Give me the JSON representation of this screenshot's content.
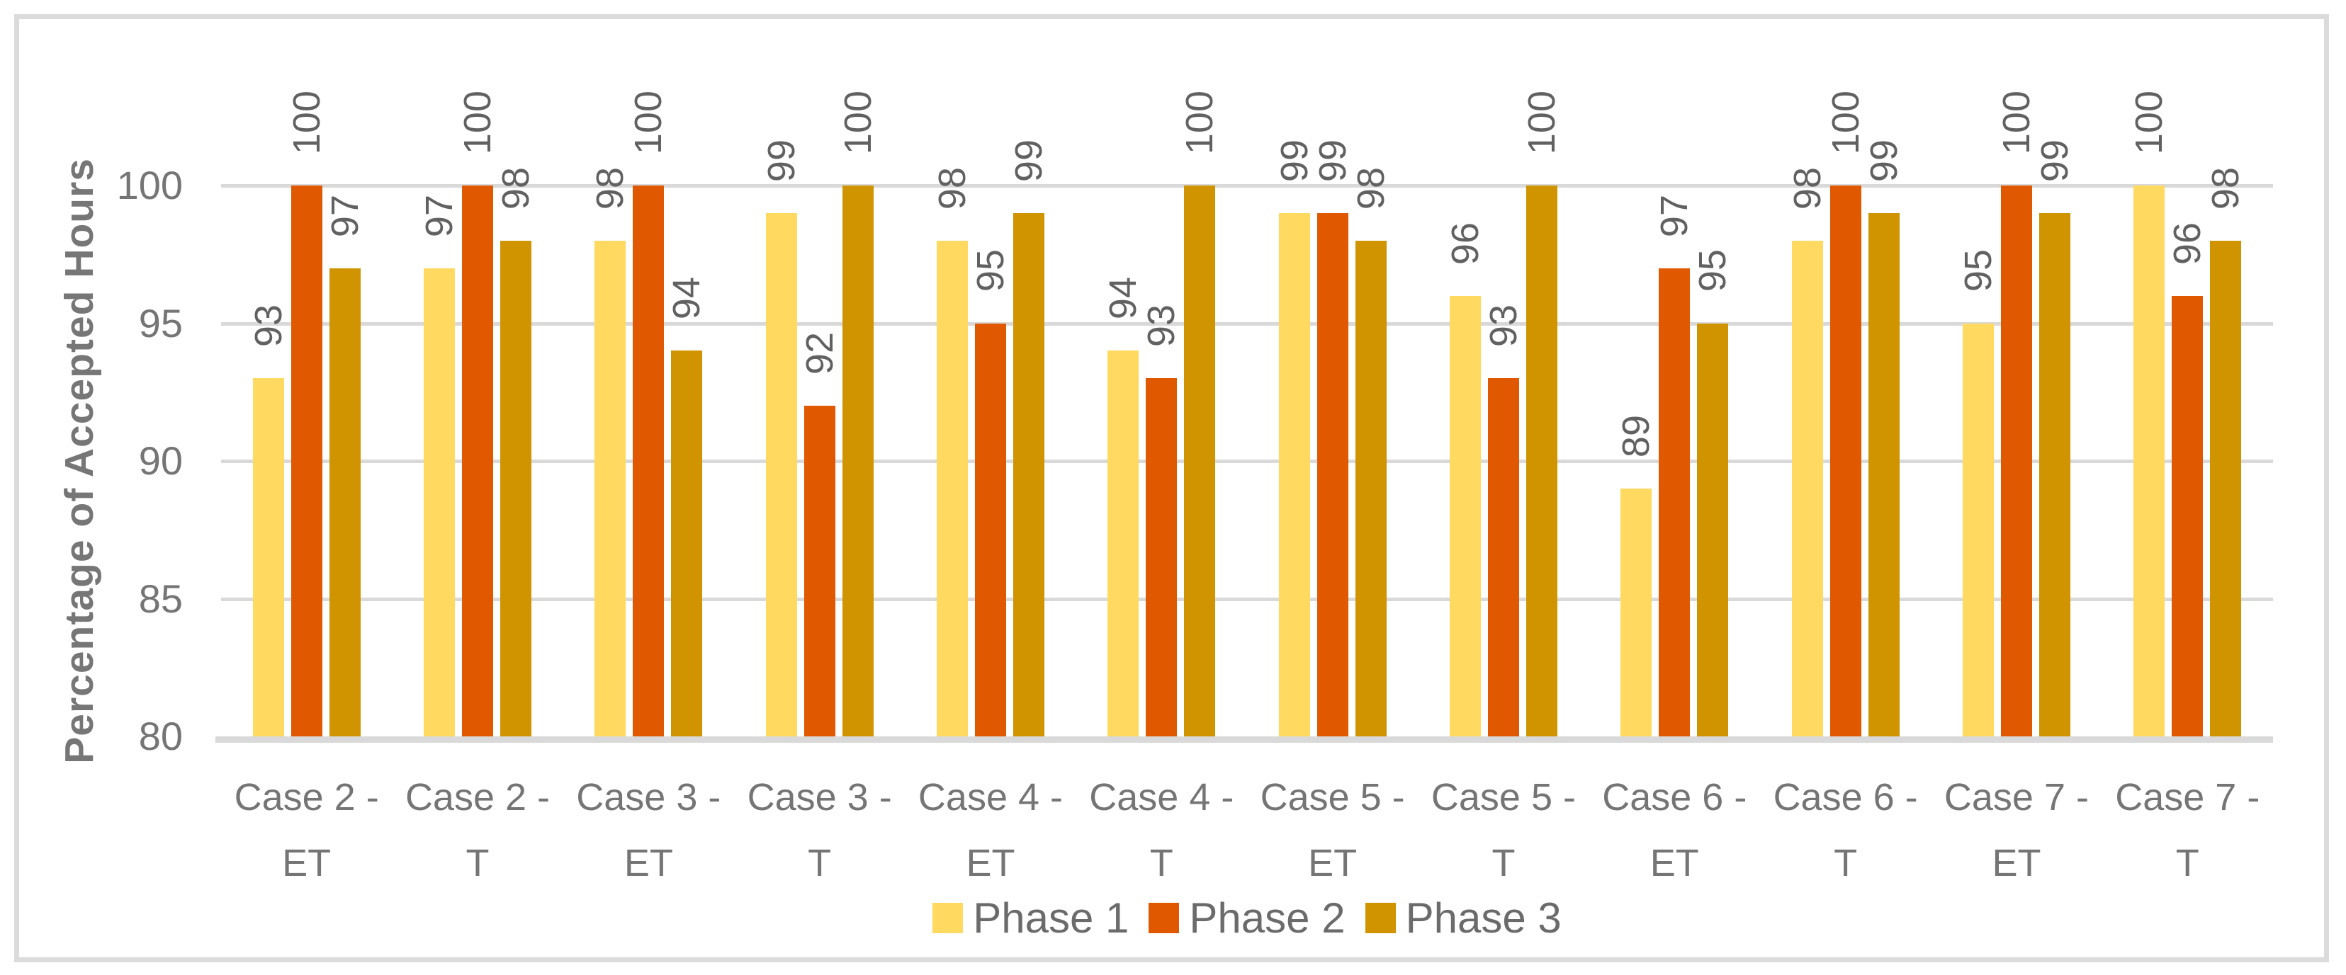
{
  "chart_data": {
    "type": "bar",
    "title": "",
    "xlabel": "",
    "ylabel": "Percentage of Accepted Hours",
    "ylim": [
      80,
      100
    ],
    "yticks": [
      80,
      85,
      90,
      95,
      100
    ],
    "grid": true,
    "legend_position": "bottom",
    "bar_label_rotation": "90deg-counterclockwise",
    "categories": [
      "Case 2 - ET",
      "Case 2 - T",
      "Case 3 - ET",
      "Case 3 - T",
      "Case 4 - ET",
      "Case 4 - T",
      "Case 5 - ET",
      "Case 5 - T",
      "Case 6 - ET",
      "Case 6 - T",
      "Case 7 - ET",
      "Case 7 - T"
    ],
    "series": [
      {
        "name": "Phase 1",
        "color": "#FFD960",
        "values": [
          93,
          97,
          98,
          99,
          98,
          94,
          99,
          96,
          89,
          98,
          95,
          100
        ]
      },
      {
        "name": "Phase 2",
        "color": "#E05800",
        "values": [
          100,
          100,
          100,
          92,
          95,
          93,
          99,
          93,
          97,
          100,
          100,
          96
        ]
      },
      {
        "name": "Phase 3",
        "color": "#D09400",
        "values": [
          97,
          98,
          94,
          100,
          99,
          100,
          98,
          100,
          95,
          99,
          99,
          98
        ]
      }
    ],
    "colors": {
      "gridline": "#d9d9d9",
      "axis_line": "#d9d9d9",
      "frame_border": "#dbdbdb",
      "tick_text": "#757575",
      "data_label_text": "#616161",
      "legend_text": "#6b6b6b",
      "axis_title_text": "#767676"
    }
  }
}
